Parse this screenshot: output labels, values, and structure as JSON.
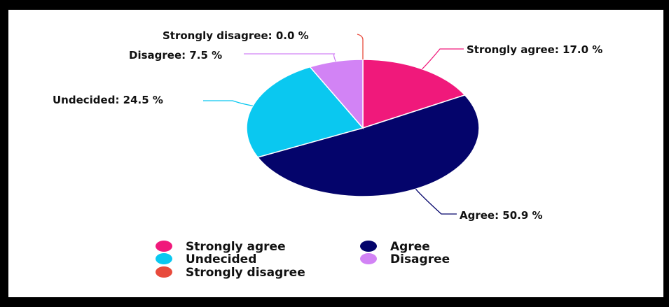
{
  "chart_data": {
    "type": "pie",
    "categories": [
      "Strongly agree",
      "Agree",
      "Undecided",
      "Disagree",
      "Strongly disagree"
    ],
    "values": [
      17.0,
      50.9,
      24.5,
      7.5,
      0.0
    ],
    "colors": [
      "#f0197b",
      "#04046b",
      "#0ac8f0",
      "#d283f5",
      "#e84a3c"
    ],
    "slice_labels": [
      "Strongly agree: 17.0 %",
      "Agree: 50.9 %",
      "Undecided: 24.5 %",
      "Disagree: 7.5 %",
      "Strongly disagree: 0.0 %"
    ],
    "legend": {
      "position": "bottom",
      "entries": [
        "Strongly agree",
        "Agree",
        "Undecided",
        "Disagree",
        "Strongly disagree"
      ]
    }
  }
}
